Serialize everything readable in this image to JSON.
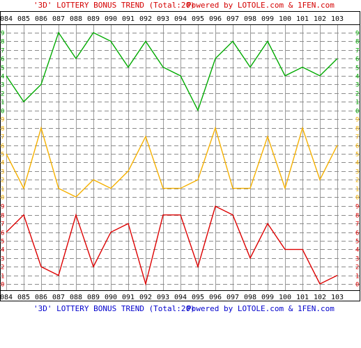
{
  "header": {
    "title": "'3D' LOTTERY BONUS TREND (Total:20)",
    "credit": "Powered by LOTOLE.com & 1FEN.com"
  },
  "footer": {
    "title": "'3D' LOTTERY BONUS TREND (Total:20)",
    "credit": "Powered by LOTOLE.com & 1FEN.com"
  },
  "colors": {
    "green": "#00aa00",
    "orange": "#f5b000",
    "red": "#dd0000",
    "header_text": "#d40000",
    "footer_text": "#0000cc",
    "grid": "#808080"
  },
  "chart_data": {
    "type": "line",
    "title": "'3D' LOTTERY BONUS TREND (Total:20)",
    "x": [
      "084",
      "085",
      "086",
      "087",
      "088",
      "089",
      "090",
      "091",
      "092",
      "093",
      "094",
      "095",
      "096",
      "097",
      "098",
      "099",
      "100",
      "101",
      "102",
      "103"
    ],
    "y_ticks": [
      0,
      1,
      2,
      3,
      4,
      5,
      6,
      7,
      8,
      9
    ],
    "ylim": [
      0,
      9
    ],
    "grid": true,
    "series": [
      {
        "color": "#00aa00",
        "values": [
          4,
          1,
          3,
          9,
          6,
          9,
          8,
          5,
          8,
          5,
          4,
          0,
          6,
          8,
          5,
          8,
          4,
          5,
          4,
          6
        ]
      },
      {
        "color": "#f5b000",
        "values": [
          5,
          1,
          8,
          1,
          0,
          2,
          1,
          3,
          7,
          1,
          1,
          2,
          8,
          1,
          1,
          7,
          1,
          8,
          2,
          6
        ]
      },
      {
        "color": "#dd0000",
        "values": [
          6,
          8,
          2,
          1,
          8,
          2,
          6,
          7,
          0,
          8,
          8,
          2,
          9,
          8,
          3,
          7,
          4,
          4,
          0,
          1
        ]
      }
    ]
  }
}
